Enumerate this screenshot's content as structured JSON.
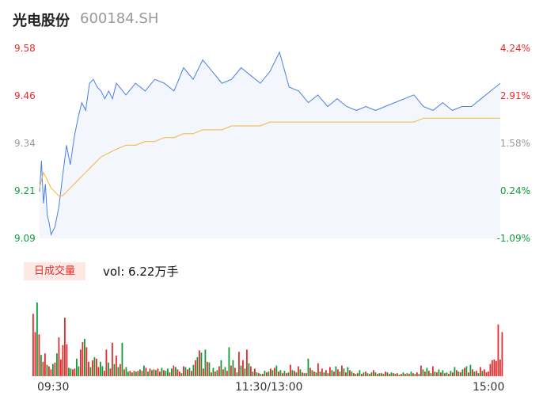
{
  "header": {
    "name": "光电股份",
    "code": "600184.SH"
  },
  "colors": {
    "up": "#ea2a2a",
    "down": "#0f9d3a",
    "neutral": "#999999",
    "price_line": "#4a7fe8",
    "avg_line": "#f4b63c",
    "area_fill": "#f3f6fd"
  },
  "volume_panel": {
    "badge": "日成交量",
    "summary": "vol: 6.22万手"
  },
  "chart_data": [
    {
      "type": "line",
      "title": "光电股份 600184.SH",
      "xlabel": "",
      "ylabel": "",
      "ylim": [
        9.09,
        9.58
      ],
      "y_ticks": [
        "9.58",
        "9.46",
        "9.34",
        "9.21",
        "9.09"
      ],
      "y2_ticks": [
        "4.24%",
        "2.91%",
        "1.58%",
        "0.24%",
        "-1.09%"
      ],
      "x_ticks": [
        "09:30",
        "11:30/13:00",
        "15:00"
      ],
      "x_range": [
        0,
        240
      ],
      "series": [
        {
          "role": "price",
          "x": [
            0,
            1,
            2,
            3,
            4,
            5,
            6,
            8,
            10,
            12,
            14,
            16,
            18,
            20,
            22,
            24,
            26,
            28,
            30,
            32,
            34,
            36,
            38,
            40,
            45,
            50,
            55,
            60,
            65,
            70,
            75,
            80,
            85,
            90,
            95,
            100,
            105,
            110,
            115,
            120,
            125,
            130,
            135,
            140,
            145,
            150,
            155,
            160,
            165,
            170,
            175,
            180,
            185,
            190,
            195,
            200,
            205,
            210,
            215,
            220,
            225,
            230,
            235,
            240
          ],
          "values": [
            9.21,
            9.29,
            9.18,
            9.23,
            9.15,
            9.13,
            9.1,
            9.12,
            9.17,
            9.25,
            9.33,
            9.28,
            9.35,
            9.4,
            9.44,
            9.42,
            9.49,
            9.5,
            9.48,
            9.47,
            9.45,
            9.47,
            9.45,
            9.49,
            9.46,
            9.49,
            9.47,
            9.5,
            9.49,
            9.47,
            9.53,
            9.5,
            9.55,
            9.52,
            9.49,
            9.5,
            9.53,
            9.51,
            9.49,
            9.52,
            9.57,
            9.48,
            9.47,
            9.44,
            9.46,
            9.43,
            9.45,
            9.43,
            9.42,
            9.43,
            9.42,
            9.43,
            9.44,
            9.45,
            9.46,
            9.43,
            9.42,
            9.44,
            9.42,
            9.43,
            9.43,
            9.45,
            9.47,
            9.49
          ]
        },
        {
          "role": "average",
          "x": [
            0,
            2,
            4,
            6,
            8,
            10,
            12,
            14,
            16,
            18,
            20,
            24,
            28,
            32,
            36,
            40,
            45,
            50,
            55,
            60,
            65,
            70,
            75,
            80,
            85,
            90,
            95,
            100,
            105,
            110,
            115,
            120,
            125,
            130,
            135,
            140,
            145,
            150,
            155,
            160,
            165,
            170,
            175,
            180,
            185,
            190,
            195,
            200,
            205,
            210,
            215,
            220,
            225,
            230,
            235,
            240
          ],
          "values": [
            9.22,
            9.26,
            9.24,
            9.22,
            9.21,
            9.2,
            9.2,
            9.21,
            9.22,
            9.23,
            9.24,
            9.26,
            9.28,
            9.3,
            9.31,
            9.32,
            9.33,
            9.33,
            9.34,
            9.34,
            9.35,
            9.35,
            9.36,
            9.36,
            9.37,
            9.37,
            9.37,
            9.38,
            9.38,
            9.38,
            9.38,
            9.39,
            9.39,
            9.39,
            9.39,
            9.39,
            9.39,
            9.39,
            9.39,
            9.39,
            9.39,
            9.39,
            9.39,
            9.39,
            9.39,
            9.39,
            9.39,
            9.4,
            9.4,
            9.4,
            9.4,
            9.4,
            9.4,
            9.4,
            9.4,
            9.4
          ]
        }
      ]
    },
    {
      "type": "bar",
      "title": "日成交量",
      "ylim": [
        0,
        1
      ],
      "series": [
        {
          "name": "vol",
          "values": [
            0.82,
            0.58,
            0.97,
            0.55,
            0.28,
            0.19,
            0.3,
            0.15,
            0.13,
            0.09,
            0.16,
            0.18,
            0.3,
            0.51,
            0.22,
            0.41,
            0.77,
            0.42,
            0.11,
            0.1,
            0.09,
            0.1,
            0.23,
            0.13,
            0.35,
            0.45,
            0.49,
            0.38,
            0.19,
            0.12,
            0.21,
            0.25,
            0.23,
            0.12,
            0.19,
            0.13,
            0.07,
            0.35,
            0.18,
            0.1,
            0.44,
            0.16,
            0.27,
            0.12,
            0.16,
            0.44,
            0.09,
            0.12,
            0.06,
            0.07,
            0.05,
            0.07,
            0.06,
            0.07,
            0.09,
            0.07,
            0.14,
            0.11,
            0.06,
            0.1,
            0.08,
            0.09,
            0.08,
            0.1,
            0.06,
            0.11,
            0.08,
            0.07,
            0.1,
            0.05,
            0.1,
            0.14,
            0.12,
            0.09,
            0.06,
            0.04,
            0.13,
            0.12,
            0.09,
            0.11,
            0.07,
            0.15,
            0.21,
            0.25,
            0.34,
            0.31,
            0.1,
            0.35,
            0.19,
            0.18,
            0.05,
            0.11,
            0.06,
            0.08,
            0.13,
            0.21,
            0.09,
            0.12,
            0.07,
            0.38,
            0.14,
            0.21,
            0.11,
            0.05,
            0.32,
            0.14,
            0.21,
            0.1,
            0.35,
            0.17,
            0.13,
            0.06,
            0.1,
            0.05,
            0.04,
            0.03,
            0.03,
            0.07,
            0.05,
            0.06,
            0.1,
            0.08,
            0.11,
            0.14,
            0.06,
            0.08,
            0.04,
            0.07,
            0.04,
            0.05,
            0.15,
            0.08,
            0.07,
            0.05,
            0.13,
            0.09,
            0.05,
            0.04,
            0.04,
            0.23,
            0.11,
            0.08,
            0.06,
            0.05,
            0.17,
            0.06,
            0.1,
            0.05,
            0.08,
            0.04,
            0.12,
            0.08,
            0.06,
            0.13,
            0.09,
            0.06,
            0.14,
            0.1,
            0.05,
            0.12,
            0.08,
            0.06,
            0.04,
            0.03,
            0.04,
            0.08,
            0.03,
            0.05,
            0.06,
            0.04,
            0.03,
            0.05,
            0.08,
            0.05,
            0.03,
            0.04,
            0.04,
            0.03,
            0.06,
            0.05,
            0.03,
            0.05,
            0.04,
            0.03,
            0.04,
            0.02,
            0.03,
            0.05,
            0.03,
            0.04,
            0.03,
            0.06,
            0.04,
            0.03,
            0.05,
            0.03,
            0.14,
            0.09,
            0.06,
            0.11,
            0.07,
            0.04,
            0.13,
            0.06,
            0.05,
            0.09,
            0.05,
            0.08,
            0.04,
            0.05,
            0.03,
            0.07,
            0.05,
            0.12,
            0.08,
            0.06,
            0.05,
            0.09,
            0.11,
            0.13,
            0.05,
            0.15,
            0.09,
            0.06,
            0.07,
            0.04,
            0.12,
            0.07,
            0.09,
            0.05,
            0.06,
            0.16,
            0.21,
            0.22,
            0.2,
            0.68,
            0.22,
            0.58
          ],
          "colors": [
            "up",
            "up",
            "down",
            "up",
            "down",
            "up",
            "up",
            "down",
            "up",
            "up",
            "down",
            "up",
            "down",
            "up",
            "up",
            "up",
            "up",
            "up",
            "down",
            "down",
            "up",
            "up",
            "down",
            "down",
            "up",
            "up",
            "down",
            "up",
            "up",
            "down",
            "up",
            "down",
            "up",
            "up",
            "down",
            "down",
            "up",
            "up",
            "down",
            "up",
            "up",
            "down",
            "up",
            "down",
            "up",
            "down",
            "up",
            "down",
            "down",
            "up",
            "down",
            "up",
            "down",
            "up",
            "down",
            "up",
            "down",
            "up",
            "down",
            "up",
            "down",
            "up",
            "down",
            "up",
            "up",
            "down",
            "up",
            "down",
            "down",
            "up",
            "down",
            "up",
            "down",
            "up",
            "up",
            "down",
            "up",
            "down",
            "up",
            "down",
            "up",
            "down",
            "up",
            "down",
            "up",
            "down",
            "up",
            "down",
            "up",
            "down",
            "up",
            "down",
            "up",
            "down",
            "up",
            "down",
            "up",
            "down",
            "up",
            "down",
            "up",
            "down",
            "up",
            "down",
            "up",
            "down",
            "up",
            "down",
            "up",
            "down",
            "up",
            "down",
            "up",
            "down",
            "up",
            "down",
            "up",
            "down",
            "up",
            "down",
            "up",
            "down",
            "up",
            "down",
            "up",
            "down",
            "up",
            "down",
            "up",
            "down",
            "up",
            "down",
            "up",
            "down",
            "up",
            "down",
            "up",
            "down",
            "up",
            "down",
            "up",
            "down",
            "up",
            "down",
            "up",
            "down",
            "up",
            "down",
            "up",
            "down",
            "up",
            "down",
            "up",
            "down",
            "up",
            "down",
            "up",
            "down",
            "up",
            "down",
            "up",
            "down",
            "up",
            "down",
            "up",
            "down",
            "up",
            "down",
            "up",
            "down",
            "up",
            "down",
            "up",
            "down",
            "up",
            "down",
            "up",
            "down",
            "up",
            "down",
            "up",
            "down",
            "up",
            "down",
            "up",
            "down",
            "up",
            "down",
            "up",
            "down",
            "up",
            "down",
            "up",
            "down",
            "up",
            "down",
            "up",
            "down",
            "up",
            "down",
            "up",
            "down",
            "up",
            "down",
            "up",
            "down",
            "up",
            "down",
            "up",
            "down",
            "up",
            "down",
            "up",
            "down",
            "up",
            "down",
            "up",
            "down",
            "up",
            "down",
            "up",
            "down",
            "up",
            "down",
            "up",
            "down",
            "up",
            "down",
            "up",
            "up",
            "up",
            "up",
            "up",
            "up",
            "up"
          ]
        }
      ]
    }
  ]
}
